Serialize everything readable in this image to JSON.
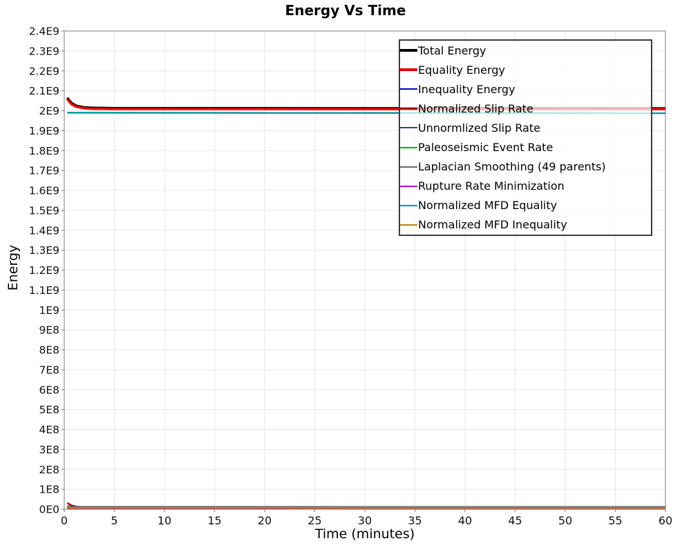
{
  "chart_data": {
    "type": "line",
    "title": "Energy Vs Time",
    "xlabel": "Time (minutes)",
    "ylabel": "Energy",
    "xlim": [
      0,
      60
    ],
    "ylim": [
      0,
      2400000000.0
    ],
    "grid": true,
    "background": "#ffffff",
    "gridline_color": "#e6e6e6",
    "spine_color": "#999999",
    "tick_color": "#888888",
    "legend_position": "top-right",
    "legend_border_color": "#3a3a3a",
    "x_ticks": [
      0,
      5,
      10,
      15,
      20,
      25,
      30,
      35,
      40,
      45,
      50,
      55,
      60
    ],
    "y_tick_values": [
      0,
      100000000.0,
      200000000.0,
      300000000.0,
      400000000.0,
      500000000.0,
      600000000.0,
      700000000.0,
      800000000.0,
      900000000.0,
      1000000000.0,
      1100000000.0,
      1200000000.0,
      1300000000.0,
      1400000000.0,
      1500000000.0,
      1600000000.0,
      1700000000.0,
      1800000000.0,
      1900000000.0,
      2000000000.0,
      2100000000.0,
      2200000000.0,
      2300000000.0,
      2400000000.0
    ],
    "y_tick_labels": [
      "0E0",
      "1E8",
      "2E8",
      "3E8",
      "4E8",
      "5E8",
      "6E8",
      "7E8",
      "8E8",
      "9E8",
      "1E9",
      "1.1E9",
      "1.2E9",
      "1.3E9",
      "1.4E9",
      "1.5E9",
      "1.6E9",
      "1.7E9",
      "1.8E9",
      "1.9E9",
      "2E9",
      "2.1E9",
      "2.2E9",
      "2.3E9",
      "2.4E9"
    ],
    "series": [
      {
        "name": "Total Energy",
        "color": "#000000",
        "width": 3.5,
        "points": [
          [
            0.3,
            2065000000.0
          ],
          [
            0.7,
            2040000000.0
          ],
          [
            1.2,
            2025000000.0
          ],
          [
            2,
            2017000000.0
          ],
          [
            3,
            2014500000.0
          ],
          [
            5,
            2013000000.0
          ],
          [
            60,
            2012000000.0
          ]
        ]
      },
      {
        "name": "Equality Energy",
        "color": "#e60000",
        "width": 3.5,
        "points": [
          [
            0.3,
            2058000000.0
          ],
          [
            0.7,
            2034000000.0
          ],
          [
            1.2,
            2020000000.0
          ],
          [
            2,
            2012500000.0
          ],
          [
            3,
            2010000000.0
          ],
          [
            5,
            2009000000.0
          ],
          [
            60,
            2008500000.0
          ]
        ]
      },
      {
        "name": "Inequality Energy",
        "color": "#0000cc",
        "width": 2.5,
        "points": [
          [
            0.3,
            3000000.0
          ],
          [
            60,
            2500000.0
          ]
        ]
      },
      {
        "name": "Normalized Slip Rate",
        "color": "#aa0000",
        "width": 2.5,
        "points": [
          [
            0.3,
            31000000.0
          ],
          [
            0.7,
            19000000.0
          ],
          [
            1.2,
            13000000.0
          ],
          [
            2,
            10500000.0
          ],
          [
            3,
            9500000.0
          ],
          [
            60,
            9000000.0
          ]
        ]
      },
      {
        "name": "Unnormlized Slip Rate",
        "color": "#3333aa",
        "width": 2,
        "points": [
          [
            0.3,
            2000000.0
          ],
          [
            60,
            1800000.0
          ]
        ]
      },
      {
        "name": "Paleoseismic Event Rate",
        "color": "#00b800",
        "width": 2,
        "points": [
          [
            0.3,
            16000000.0
          ],
          [
            0.7,
            11000000.0
          ],
          [
            1.5,
            8500000.0
          ],
          [
            60,
            8000000.0
          ]
        ]
      },
      {
        "name": "Laplacian Smoothing (49 parents)",
        "color": "#666666",
        "width": 2,
        "points": [
          [
            0.3,
            13500000.0
          ],
          [
            1,
            12500000.0
          ],
          [
            60,
            12000000.0
          ]
        ]
      },
      {
        "name": "Rupture Rate Minimization",
        "color": "#cc00cc",
        "width": 2,
        "points": [
          [
            0.3,
            1200000.0
          ],
          [
            60,
            1000000.0
          ]
        ]
      },
      {
        "name": "Normalized MFD Equality",
        "color": "#009999",
        "width": 2.5,
        "points": [
          [
            0.3,
            1990000000.0
          ],
          [
            60,
            1988000000.0
          ]
        ]
      },
      {
        "name": "Normalized MFD Inequality",
        "color": "#b8860b",
        "width": 2.5,
        "points": [
          [
            0.3,
            6500000.0
          ],
          [
            60,
            6000000.0
          ]
        ]
      }
    ]
  }
}
